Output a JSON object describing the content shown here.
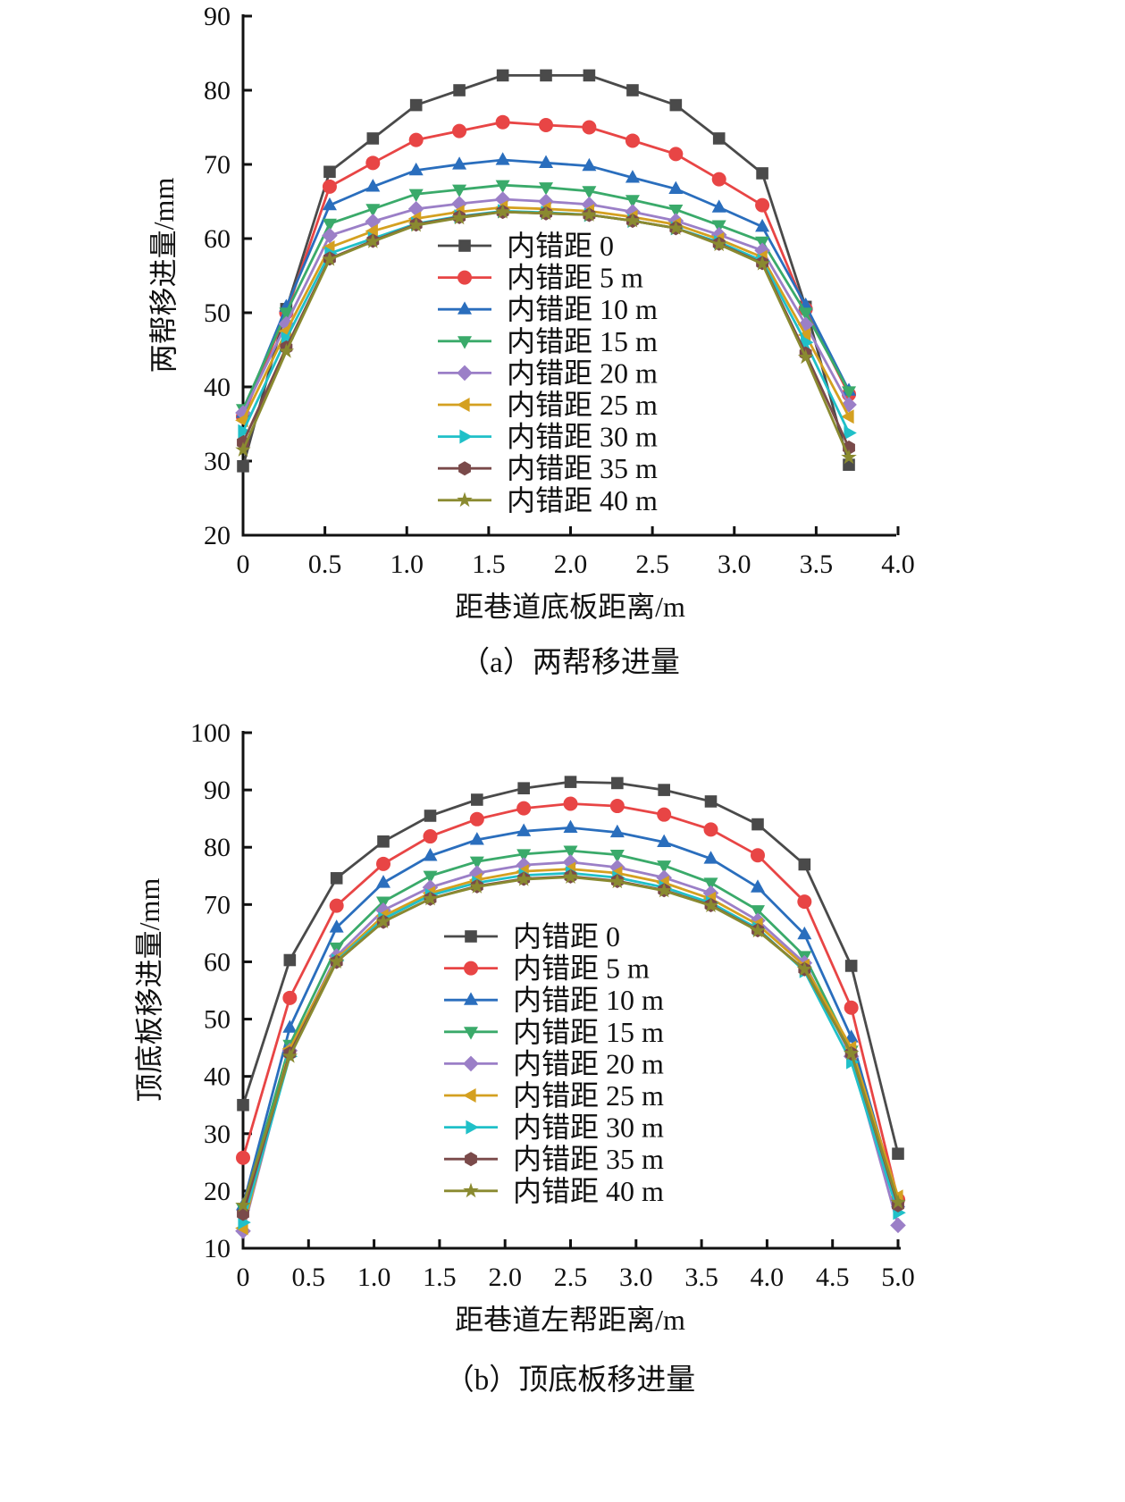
{
  "chart_data": [
    {
      "type": "line",
      "title": "（a）两帮移进量",
      "xlabel": "距巷道底板距离/m",
      "ylabel": "两帮移进量/mm",
      "xlim": [
        0,
        4.0
      ],
      "ylim": [
        20,
        90
      ],
      "xticks": [
        "0",
        "0.5",
        "1.0",
        "1.5",
        "2.0",
        "2.5",
        "3.0",
        "3.5",
        "4.0"
      ],
      "yticks": [
        "20",
        "30",
        "40",
        "50",
        "60",
        "70",
        "80",
        "90"
      ],
      "legend_position": "center",
      "x": [
        0,
        0.264,
        0.529,
        0.793,
        1.057,
        1.321,
        1.586,
        1.85,
        2.114,
        2.379,
        2.643,
        2.907,
        3.171,
        3.436,
        3.7
      ],
      "series": [
        {
          "name": "内错距 0",
          "color": "#4a4a4a",
          "marker": "square",
          "values": [
            29.3,
            50.5,
            69,
            73.5,
            78,
            80,
            82,
            82,
            82,
            80,
            78,
            73.5,
            68.8,
            50.8,
            29.5
          ]
        },
        {
          "name": "内错距 5 m",
          "color": "#e84545",
          "marker": "circle",
          "values": [
            36,
            50,
            67,
            70.2,
            73.3,
            74.5,
            75.7,
            75.3,
            75,
            73.2,
            71.4,
            68,
            64.5,
            50.5,
            39
          ]
        },
        {
          "name": "内错距 10 m",
          "color": "#2a6ebd",
          "marker": "triangle-up",
          "values": [
            36.5,
            50.8,
            64.5,
            67,
            69.2,
            70,
            70.6,
            70.2,
            69.8,
            68.2,
            66.7,
            64.2,
            61.6,
            51,
            39.5
          ]
        },
        {
          "name": "内错距 15 m",
          "color": "#3aaa6a",
          "marker": "triangle-down",
          "values": [
            37,
            50,
            62,
            64,
            66,
            66.6,
            67.2,
            66.9,
            66.4,
            65.2,
            63.9,
            61.8,
            59.6,
            50,
            39.4
          ]
        },
        {
          "name": "内错距 20 m",
          "color": "#9b7fc7",
          "marker": "diamond",
          "values": [
            36.5,
            48.5,
            60.4,
            62.3,
            64,
            64.7,
            65.3,
            65,
            64.6,
            63.6,
            62.4,
            60.5,
            58.4,
            48.4,
            37.6
          ]
        },
        {
          "name": "内错距 25 m",
          "color": "#d4a020",
          "marker": "triangle-left",
          "values": [
            35.5,
            47.5,
            58.8,
            61,
            62.7,
            63.6,
            64.2,
            64,
            63.7,
            62.9,
            61.9,
            59.9,
            57.5,
            47,
            36
          ]
        },
        {
          "name": "内错距 30 m",
          "color": "#20c0c8",
          "marker": "triangle-right",
          "values": [
            34,
            46.5,
            58,
            60,
            62,
            63,
            63.7,
            63.5,
            63.2,
            62.4,
            61.4,
            59.5,
            57,
            46,
            33.8
          ]
        },
        {
          "name": "内错距 35 m",
          "color": "#7a4a4a",
          "marker": "hexagon",
          "values": [
            32.5,
            45.3,
            57.3,
            59.7,
            61.9,
            62.9,
            63.6,
            63.4,
            63.2,
            62.4,
            61.4,
            59.3,
            56.7,
            44.5,
            31.8
          ]
        },
        {
          "name": "内错距 40 m",
          "color": "#8a8a30",
          "marker": "star",
          "values": [
            31.5,
            44.8,
            57.2,
            59.6,
            61.8,
            62.8,
            63.6,
            63.4,
            63.2,
            62.4,
            61.4,
            59.2,
            56.6,
            44,
            30.5
          ]
        }
      ]
    },
    {
      "type": "line",
      "title": "（b）顶底板移进量",
      "xlabel": "距巷道左帮距离/m",
      "ylabel": "顶底板移进量/mm",
      "xlim": [
        0,
        5.0
      ],
      "ylim": [
        10,
        100
      ],
      "xticks": [
        "0",
        "0.5",
        "1.0",
        "1.5",
        "2.0",
        "2.5",
        "3.0",
        "3.5",
        "4.0",
        "4.5",
        "5.0"
      ],
      "yticks": [
        "10",
        "20",
        "30",
        "40",
        "50",
        "60",
        "70",
        "80",
        "90",
        "100"
      ],
      "legend_position": "center",
      "x": [
        0,
        0.357,
        0.714,
        1.071,
        1.429,
        1.786,
        2.143,
        2.5,
        2.857,
        3.214,
        3.571,
        3.929,
        4.286,
        4.643,
        5.0
      ],
      "series": [
        {
          "name": "内错距 0",
          "color": "#4a4a4a",
          "marker": "square",
          "values": [
            35,
            60.3,
            74.6,
            81,
            85.5,
            88.3,
            90.3,
            91.4,
            91.2,
            90,
            88,
            84,
            77,
            59.3,
            26.5
          ]
        },
        {
          "name": "内错距 5 m",
          "color": "#e84545",
          "marker": "circle",
          "values": [
            25.8,
            53.7,
            69.8,
            77.1,
            81.9,
            84.9,
            86.8,
            87.6,
            87.2,
            85.7,
            83.1,
            78.6,
            70.5,
            52,
            18.5
          ]
        },
        {
          "name": "内错距 10 m",
          "color": "#2a6ebd",
          "marker": "triangle-up",
          "values": [
            17.5,
            48.5,
            66,
            73.8,
            78.5,
            81.3,
            82.8,
            83.4,
            82.6,
            80.9,
            78,
            73,
            64.8,
            46.8,
            18
          ]
        },
        {
          "name": "内错距 15 m",
          "color": "#3aaa6a",
          "marker": "triangle-down",
          "values": [
            17,
            45.5,
            62.5,
            70.5,
            75,
            77.5,
            78.8,
            79.4,
            78.7,
            76.8,
            73.8,
            69,
            61,
            44.5,
            17.5
          ]
        },
        {
          "name": "内错距 20 m",
          "color": "#9b7fc7",
          "marker": "diamond",
          "values": [
            13,
            44.5,
            61,
            69,
            73,
            75.5,
            76.9,
            77.4,
            76.5,
            74.7,
            72,
            67.2,
            59.8,
            43.5,
            14
          ]
        },
        {
          "name": "内错距 25 m",
          "color": "#d4a020",
          "marker": "triangle-left",
          "values": [
            13.5,
            44.8,
            60.5,
            68,
            72,
            74.3,
            75.8,
            76.2,
            75.5,
            73.8,
            71,
            66.5,
            59.3,
            45,
            19
          ]
        },
        {
          "name": "内错距 30 m",
          "color": "#20c0c8",
          "marker": "triangle-right",
          "values": [
            14.5,
            43.5,
            60.2,
            67.5,
            71.6,
            73.8,
            75.1,
            75.5,
            74.7,
            73,
            70.3,
            65.8,
            58.4,
            42.5,
            16.2
          ]
        },
        {
          "name": "内错距 35 m",
          "color": "#7a4a4a",
          "marker": "hexagon",
          "values": [
            16,
            44,
            60,
            67,
            71,
            73.2,
            74.5,
            74.9,
            74.1,
            72.5,
            69.9,
            65.5,
            58.7,
            44,
            17.5
          ]
        },
        {
          "name": "内错距 40 m",
          "color": "#8a8a30",
          "marker": "star",
          "values": [
            17.5,
            43.5,
            60,
            67,
            71,
            73.1,
            74.4,
            74.8,
            74,
            72.4,
            69.8,
            65.4,
            58.7,
            44,
            18
          ]
        }
      ]
    }
  ]
}
